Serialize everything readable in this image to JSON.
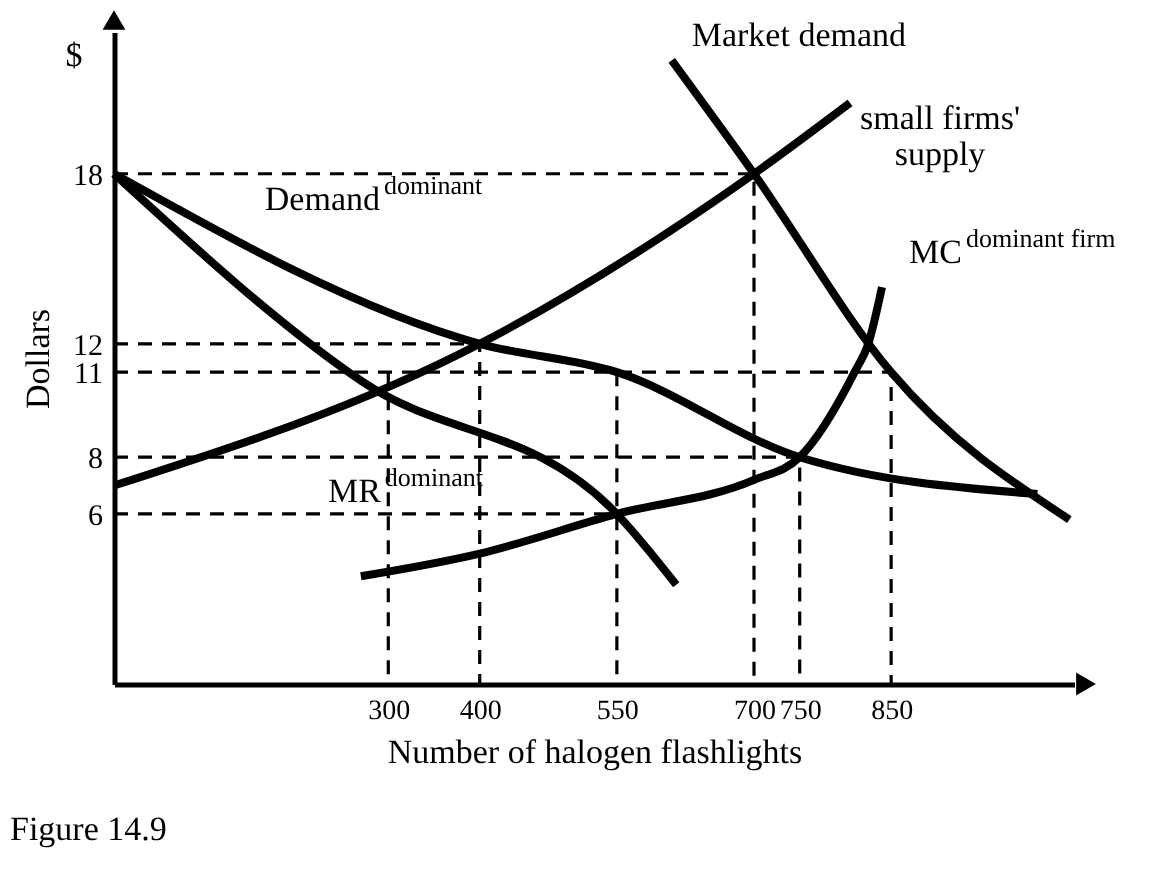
{
  "chart_data": {
    "type": "line",
    "xlabel": "Number of halogen flashlights",
    "ylabel": "Dollars",
    "annotations": [
      "$",
      "Figure 14.9"
    ],
    "xlim": [
      0,
      1050
    ],
    "ylim": [
      0,
      23
    ],
    "xticks": [
      300,
      400,
      550,
      700,
      750,
      850
    ],
    "yticks": [
      6,
      8,
      11,
      12,
      18
    ],
    "line_style": "solid",
    "series": [
      {
        "name": "Market demand",
        "color": "#000000",
        "x": [
          610,
          700,
          850,
          1045
        ],
        "values": [
          22,
          18,
          11,
          5.8
        ]
      },
      {
        "name": "small firms' supply",
        "color": "#000000",
        "x": [
          0,
          400,
          700,
          805
        ],
        "values": [
          7,
          12,
          18,
          20.5
        ]
      },
      {
        "name": "Demand$^{dominant}$",
        "color": "#000000",
        "x": [
          0,
          400,
          550,
          750,
          1010
        ],
        "values": [
          18,
          12,
          11,
          8,
          6.7
        ]
      },
      {
        "name": "MR$^{dominant}$",
        "color": "#000000",
        "x": [
          0,
          270,
          550,
          615
        ],
        "values": [
          18,
          10.7,
          6,
          3.5
        ]
      },
      {
        "name": "MC$^{dominant firm}$",
        "color": "#000000",
        "x": [
          270,
          400,
          550,
          700,
          750,
          810,
          825,
          840
        ],
        "values": [
          3.8,
          4.6,
          6,
          7.2,
          8,
          11,
          12,
          14
        ]
      },
      {
        "color": "#000000",
        "line_style": "dashed",
        "x": [
          0,
          700,
          700
        ],
        "values": [
          18,
          18,
          0
        ]
      },
      {
        "color": "#000000",
        "line_style": "dashed",
        "x": [
          0,
          400,
          400
        ],
        "values": [
          12,
          12,
          0
        ]
      },
      {
        "color": "#000000",
        "line_style": "dashed",
        "x": [
          0,
          850,
          850
        ],
        "values": [
          11,
          11,
          0
        ]
      },
      {
        "color": "#000000",
        "line_style": "dashed",
        "x": [
          0,
          750,
          750
        ],
        "values": [
          8,
          8,
          0
        ]
      },
      {
        "color": "#000000",
        "line_style": "dashed",
        "x": [
          0,
          550
        ],
        "values": [
          6,
          6
        ]
      },
      {
        "color": "#000000",
        "line_style": "dashed",
        "x": [
          550,
          550
        ],
        "values": [
          11,
          0
        ]
      },
      {
        "color": "#000000",
        "line_style": "dashed",
        "x": [
          300,
          300
        ],
        "values": [
          11,
          0
        ]
      }
    ]
  }
}
